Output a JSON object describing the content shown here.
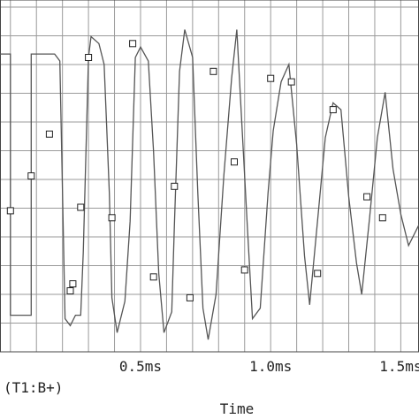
{
  "chart_data": {
    "type": "line",
    "xlabel": "Time",
    "x_unit": "ms",
    "xlim": [
      -0.04,
      1.57
    ],
    "ylim": [
      0,
      1
    ],
    "x_ticks": [
      {
        "value": 0.5,
        "label": "0.5ms"
      },
      {
        "value": 1.0,
        "label": "1.0ms"
      },
      {
        "value": 1.5,
        "label": "1.5ms"
      }
    ],
    "grid": true,
    "legend": "bottom-left",
    "series": [
      {
        "name": "(T1:B+)",
        "color": "#555555",
        "points": [
          [
            -0.04,
            0.85
          ],
          [
            0.0,
            0.85
          ],
          [
            0.0,
            0.1
          ],
          [
            0.05,
            0.1
          ],
          [
            0.08,
            0.1
          ],
          [
            0.08,
            0.85
          ],
          [
            0.13,
            0.85
          ],
          [
            0.17,
            0.85
          ],
          [
            0.19,
            0.83
          ],
          [
            0.21,
            0.09
          ],
          [
            0.23,
            0.07
          ],
          [
            0.25,
            0.1
          ],
          [
            0.27,
            0.1
          ],
          [
            0.28,
            0.28
          ],
          [
            0.3,
            0.84
          ],
          [
            0.31,
            0.9
          ],
          [
            0.34,
            0.88
          ],
          [
            0.36,
            0.82
          ],
          [
            0.37,
            0.64
          ],
          [
            0.38,
            0.45
          ],
          [
            0.39,
            0.15
          ],
          [
            0.41,
            0.05
          ],
          [
            0.44,
            0.14
          ],
          [
            0.46,
            0.37
          ],
          [
            0.48,
            0.84
          ],
          [
            0.5,
            0.87
          ],
          [
            0.53,
            0.83
          ],
          [
            0.55,
            0.57
          ],
          [
            0.57,
            0.22
          ],
          [
            0.59,
            0.05
          ],
          [
            0.62,
            0.11
          ],
          [
            0.63,
            0.36
          ],
          [
            0.65,
            0.8
          ],
          [
            0.67,
            0.92
          ],
          [
            0.7,
            0.84
          ],
          [
            0.72,
            0.45
          ],
          [
            0.74,
            0.12
          ],
          [
            0.76,
            0.03
          ],
          [
            0.79,
            0.16
          ],
          [
            0.82,
            0.5
          ],
          [
            0.85,
            0.78
          ],
          [
            0.87,
            0.92
          ],
          [
            0.91,
            0.36
          ],
          [
            0.93,
            0.09
          ],
          [
            0.96,
            0.12
          ],
          [
            0.99,
            0.45
          ],
          [
            1.01,
            0.63
          ],
          [
            1.04,
            0.77
          ],
          [
            1.07,
            0.82
          ],
          [
            1.1,
            0.59
          ],
          [
            1.13,
            0.27
          ],
          [
            1.15,
            0.13
          ],
          [
            1.18,
            0.37
          ],
          [
            1.21,
            0.61
          ],
          [
            1.24,
            0.71
          ],
          [
            1.27,
            0.69
          ],
          [
            1.3,
            0.44
          ],
          [
            1.33,
            0.25
          ],
          [
            1.35,
            0.16
          ],
          [
            1.38,
            0.38
          ],
          [
            1.41,
            0.61
          ],
          [
            1.44,
            0.74
          ],
          [
            1.47,
            0.52
          ],
          [
            1.5,
            0.39
          ],
          [
            1.53,
            0.3
          ],
          [
            1.57,
            0.36
          ]
        ],
        "markers": [
          [
            0.0,
            0.4
          ],
          [
            0.08,
            0.5
          ],
          [
            0.15,
            0.62
          ],
          [
            0.23,
            0.17
          ],
          [
            0.24,
            0.19
          ],
          [
            0.27,
            0.41
          ],
          [
            0.3,
            0.84
          ],
          [
            0.39,
            0.38
          ],
          [
            0.47,
            0.88
          ],
          [
            0.55,
            0.21
          ],
          [
            0.63,
            0.47
          ],
          [
            0.69,
            0.15
          ],
          [
            0.78,
            0.8
          ],
          [
            0.86,
            0.54
          ],
          [
            0.9,
            0.23
          ],
          [
            1.0,
            0.78
          ],
          [
            1.08,
            0.77
          ],
          [
            1.18,
            0.22
          ],
          [
            1.24,
            0.69
          ],
          [
            1.37,
            0.44
          ],
          [
            1.43,
            0.38
          ]
        ]
      }
    ]
  }
}
